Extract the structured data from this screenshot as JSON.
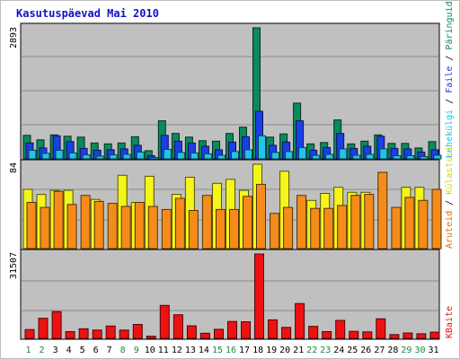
{
  "chart_data": {
    "type": "bar",
    "title": "Kasutuspäevad Mai 2010",
    "categories": [
      "1",
      "2",
      "3",
      "4",
      "5",
      "6",
      "7",
      "8",
      "9",
      "10",
      "11",
      "12",
      "13",
      "14",
      "15",
      "16",
      "17",
      "18",
      "19",
      "20",
      "21",
      "22",
      "23",
      "24",
      "25",
      "26",
      "27",
      "28",
      "29",
      "30",
      "31"
    ],
    "weekend_categories": [
      "1",
      "2",
      "8",
      "9",
      "15",
      "16",
      "22",
      "23",
      "29",
      "30"
    ],
    "panels": [
      {
        "scale_label": "2893",
        "ymax": 2893,
        "series": [
          {
            "name": "Päringuid",
            "color": "#0b8a5c",
            "values": [
              520,
              420,
              530,
              500,
              480,
              350,
              330,
              350,
              490,
              180,
              840,
              560,
              480,
              400,
              390,
              560,
              700,
              2893,
              480,
              550,
              1230,
              330,
              360,
              860,
              330,
              390,
              530,
              340,
              340,
              240,
              380
            ]
          },
          {
            "name": "Faile",
            "color": "#1a3fe6",
            "values": [
              350,
              240,
              510,
              380,
              230,
              190,
              200,
              220,
              300,
              70,
              520,
              390,
              350,
              280,
              200,
              370,
              490,
              1050,
              300,
              370,
              840,
              190,
              250,
              560,
              230,
              280,
              500,
              230,
              220,
              150,
              200
            ]
          },
          {
            "name": "Lehekülgi",
            "color": "#22c3e8",
            "values": [
              190,
              120,
              190,
              130,
              90,
              60,
              90,
              100,
              150,
              30,
              210,
              140,
              130,
              110,
              80,
              160,
              200,
              510,
              140,
              160,
              250,
              80,
              100,
              220,
              80,
              100,
              220,
              70,
              70,
              50,
              80
            ]
          }
        ]
      },
      {
        "scale_label": "84",
        "ymax": 84,
        "series": [
          {
            "name": "Külastusi",
            "color": "#f5f51a",
            "values": [
              59,
              54,
              58,
              58,
              0,
              49,
              0,
              73,
              46,
              72,
              0,
              54,
              71,
              0,
              65,
              69,
              58,
              84,
              0,
              77,
              0,
              48,
              55,
              61,
              56,
              56,
              0,
              0,
              61,
              61,
              0
            ]
          },
          {
            "name": "Aruteid",
            "color": "#f58c1a",
            "values": [
              46,
              41,
              57,
              44,
              53,
              47,
              45,
              42,
              46,
              42,
              39,
              50,
              38,
              53,
              39,
              39,
              52,
              64,
              35,
              41,
              53,
              40,
              40,
              43,
              53,
              54,
              76,
              41,
              51,
              48,
              59
            ]
          }
        ]
      },
      {
        "scale_label": "31507",
        "ymax": 31507,
        "series": [
          {
            "name": "KBaite",
            "color": "#ee1111",
            "values": [
              3300,
              7500,
              10000,
              2500,
              3600,
              3100,
              4600,
              3100,
              5200,
              800,
              12300,
              8800,
              4700,
              1900,
              3400,
              6300,
              6200,
              31507,
              6900,
              4100,
              13000,
              4500,
              2500,
              6700,
              2600,
              2400,
              7300,
              1400,
              2000,
              1700,
              2300
            ]
          }
        ]
      }
    ],
    "legend": {
      "panel1": [
        "Lehekülgi",
        "Faile",
        "Päringuid"
      ],
      "panel2": [
        "Aruteid",
        "Külastusi"
      ],
      "panel3": [
        "KBaite"
      ]
    }
  }
}
